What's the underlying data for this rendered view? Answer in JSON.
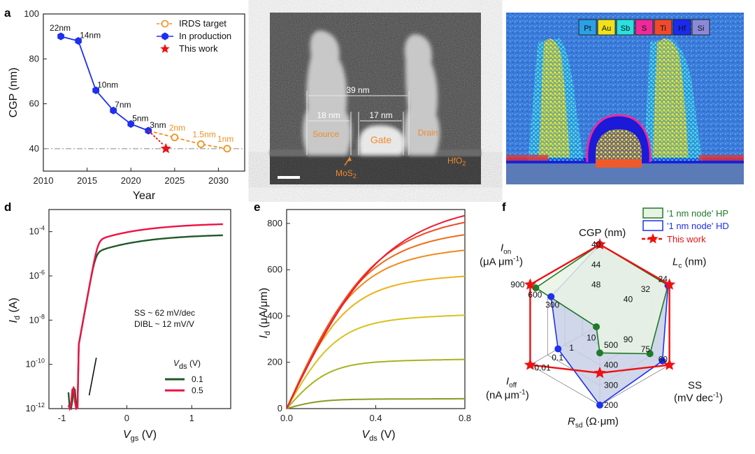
{
  "panel_letters": [
    "a",
    "b",
    "c",
    "d",
    "e",
    "f"
  ],
  "colors": {
    "orange": "#f0901e",
    "blue": "#1f2ff0",
    "red": "#ee1111",
    "green": "#1f6b2a",
    "darkgreen": "#2a5a2a"
  },
  "chart_data": [
    {
      "id": "a",
      "type": "line",
      "xlabel": "Year",
      "ylabel": "CGP (nm)",
      "xlim": [
        2010,
        2033
      ],
      "ylim": [
        30,
        100
      ],
      "xticks": [
        2010,
        2015,
        2020,
        2025,
        2030
      ],
      "yticks": [
        40,
        60,
        80,
        100
      ],
      "reference_line": 40,
      "legend_position": "top-right",
      "series": [
        {
          "name": "IRDS target",
          "style": "dashed-open-circle",
          "color": "#f0901e",
          "x": [
            2022,
            2025,
            2028,
            2031
          ],
          "y": [
            48,
            45,
            42,
            40
          ],
          "labels": [
            "",
            "2nm",
            "1.5nm",
            "1nm"
          ]
        },
        {
          "name": "In production",
          "style": "solid-hexagon",
          "color": "#1f2ff0",
          "x": [
            2012,
            2014,
            2016,
            2018,
            2020,
            2022
          ],
          "y": [
            90,
            88,
            66,
            57,
            51,
            48
          ],
          "labels": [
            "22nm",
            "14nm",
            "10nm",
            "7nm",
            "5nm",
            "3nm"
          ]
        },
        {
          "name": "This work",
          "style": "star",
          "color": "#ee1111",
          "x": [
            2024
          ],
          "y": [
            40
          ],
          "labels": [
            ""
          ]
        }
      ]
    },
    {
      "id": "d",
      "type": "line",
      "xlabel_main": "V",
      "xlabel_sub": "gs",
      "xlabel_unit": " (V)",
      "ylabel_main": "I",
      "ylabel_sub": "d",
      "ylabel_unit": " (A)",
      "xlim": [
        -1.2,
        1.6
      ],
      "ylim_log": [
        -12,
        -3
      ],
      "log_scale_y": true,
      "xticks": [
        -1,
        0,
        1
      ],
      "yticks": [
        "10^-12",
        "10^-10",
        "10^-8",
        "10^-6",
        "10^-4"
      ],
      "annotation_lines": [
        "SS ~ 62 mV/dec",
        "DIBL ~ 12 mV/V"
      ],
      "legend_title_main": "V",
      "legend_title_sub": "ds",
      "legend_title_unit": " (V)",
      "series": [
        {
          "name": "0.1",
          "color": "#1f5a2a",
          "vds": 0.1,
          "ion_log": -4.1
        },
        {
          "name": "0.5",
          "color": "#ee1144",
          "vds": 0.5,
          "ion_log": -3.6
        }
      ]
    },
    {
      "id": "e",
      "type": "line",
      "xlabel_main": "V",
      "xlabel_sub": "ds",
      "xlabel_unit": " (V)",
      "ylabel_main": "I",
      "ylabel_sub": "d",
      "ylabel_unit": " (μA/μm)",
      "xlim": [
        0,
        0.8
      ],
      "ylim": [
        0,
        860
      ],
      "xticks": [
        0.0,
        0.4,
        0.8
      ],
      "yticks": [
        0,
        200,
        400,
        600,
        800
      ],
      "saturation_currents": [
        40,
        200,
        380,
        540,
        650,
        720,
        780,
        820
      ],
      "series_colors": [
        "#8a9a22",
        "#a8b21e",
        "#d8c21a",
        "#ecb21a",
        "#f08a1a",
        "#f06a1a",
        "#ee4a22",
        "#ee1a33"
      ]
    },
    {
      "id": "f",
      "type": "radar",
      "axes": [
        "CGP (nm)",
        "Lc (nm)",
        "SS",
        "Rsd",
        "Ioff",
        "Ion"
      ],
      "axis_ticks": [
        [
          "40",
          "44",
          "48"
        ],
        [
          "24",
          "32",
          "40"
        ],
        [
          "60",
          "75",
          "90"
        ],
        [
          "200",
          "300",
          "400",
          "500"
        ],
        [
          "0.01",
          "0.1",
          "1",
          "10"
        ],
        [
          "900",
          "600",
          "300"
        ]
      ],
      "legend_position": "top-right",
      "series": [
        {
          "name": "'1 nm node' HP",
          "color": "#1f7a2a",
          "fill": "#e9f3e4",
          "r": [
            1.0,
            0.98,
            0.72,
            0.35,
            0.05,
            0.92
          ]
        },
        {
          "name": "'1 nm node' HD",
          "color": "#1f2ff0",
          "fill": "#c8d0e6",
          "r": [
            1.0,
            0.98,
            0.9,
            1.0,
            0.6,
            0.7
          ]
        },
        {
          "name": "This work",
          "color": "#ee1111",
          "fill": "none",
          "r": [
            1.0,
            1.0,
            1.0,
            0.6,
            1.0,
            1.0
          ]
        }
      ]
    }
  ],
  "panel_b": {
    "labels": {
      "width39": "39 nm",
      "width18": "18 nm",
      "width17": "17 nm",
      "source": "Source",
      "gate": "Gate",
      "drain": "Drain",
      "hfo2": "HfO",
      "hfo2_sub": "2",
      "mos2": "MoS",
      "mos2_sub": "2"
    }
  },
  "panel_c": {
    "legend": [
      {
        "label": "Pt",
        "color": "#2aa0e6"
      },
      {
        "label": "Au",
        "color": "#f0e21a"
      },
      {
        "label": "Sb",
        "color": "#2ae0e0"
      },
      {
        "label": "S",
        "color": "#ee2a9a"
      },
      {
        "label": "Ti",
        "color": "#f04a2a"
      },
      {
        "label": "Hf",
        "color": "#1a2af0"
      },
      {
        "label": "Si",
        "color": "#8a8ad8"
      }
    ]
  },
  "panel_f_labels": {
    "cgp": "CGP (nm)",
    "lc_main": "L",
    "lc_sub": "c",
    "lc_unit": " (nm)",
    "ss_main": "SS",
    "ss_unit": "(mV dec",
    "ss_sup": "-1",
    "ss_close": ")",
    "rsd_main": "R",
    "rsd_sub": "sd",
    "rsd_unit": " (Ω·μm)",
    "ioff_main": "I",
    "ioff_sub": "off",
    "ioff_unit": "(nA μm",
    "ioff_sup": "-1",
    "ioff_close": ")",
    "ion_main": "I",
    "ion_sub": "on",
    "ion_unit": "(μA μm",
    "ion_sup": "-1",
    "ion_close": ")"
  }
}
